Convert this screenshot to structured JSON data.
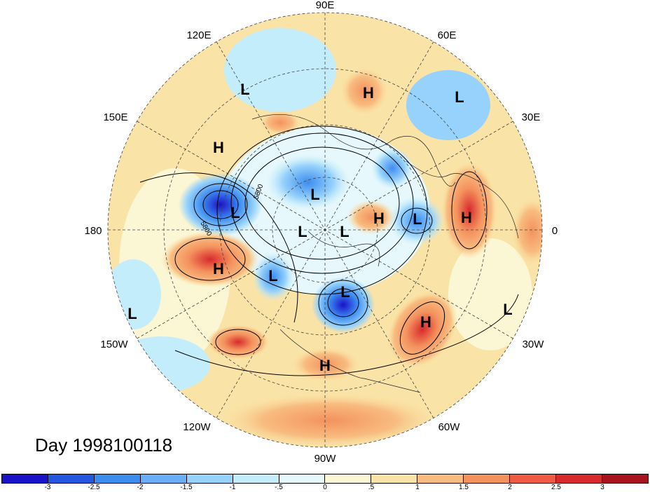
{
  "map": {
    "projection": "north polar stereographic",
    "longitude_labels": [
      "90E",
      "60E",
      "30E",
      "0",
      "30W",
      "60W",
      "90W",
      "120W",
      "150W",
      "180",
      "150E",
      "120E"
    ],
    "contour_labels": [
      "5800",
      "5800"
    ],
    "pressure_centers": [
      {
        "label": "H",
        "region": "north-central Asia"
      },
      {
        "label": "L",
        "region": "Scandinavia / Barents"
      },
      {
        "label": "L",
        "region": "northeast Asia"
      },
      {
        "label": "H",
        "region": "Kamchatka"
      },
      {
        "label": "L",
        "region": "Bering Sea"
      },
      {
        "label": "H",
        "region": "North Pacific"
      },
      {
        "label": "L",
        "region": "Gulf of Alaska / NE Pacific"
      },
      {
        "label": "L",
        "region": "subtropical Pacific"
      },
      {
        "label": "L",
        "region": "Arctic Ocean"
      },
      {
        "label": "L",
        "region": "Arctic Ocean"
      },
      {
        "label": "L",
        "region": "Canadian Archipelago"
      },
      {
        "label": "H",
        "region": "Greenland"
      },
      {
        "label": "L",
        "region": "Iceland region"
      },
      {
        "label": "H",
        "region": "Europe"
      },
      {
        "label": "L",
        "region": "Labrador / Hudson Bay"
      },
      {
        "label": "H",
        "region": "central Atlantic"
      },
      {
        "label": "L",
        "region": "eastern Atlantic"
      },
      {
        "label": "H",
        "region": "Gulf of Mexico"
      }
    ]
  },
  "title": {
    "day_label": "Day 1998100118"
  },
  "colorbar": {
    "ticks": [
      "-3",
      "-2.5",
      "-2",
      "-1.5",
      "-1",
      "-.5",
      "0",
      ".5",
      "1",
      "1.5",
      "2",
      "2.5",
      "3"
    ],
    "colors": [
      "#1a12c8",
      "#2457e0",
      "#3d8cf0",
      "#6aaef8",
      "#96d2fb",
      "#c4edfb",
      "#e6f8fb",
      "#fbf6d4",
      "#fae3a6",
      "#f8bc80",
      "#f4925e",
      "#ee5a43",
      "#d82a2c",
      "#a8141e"
    ]
  }
}
